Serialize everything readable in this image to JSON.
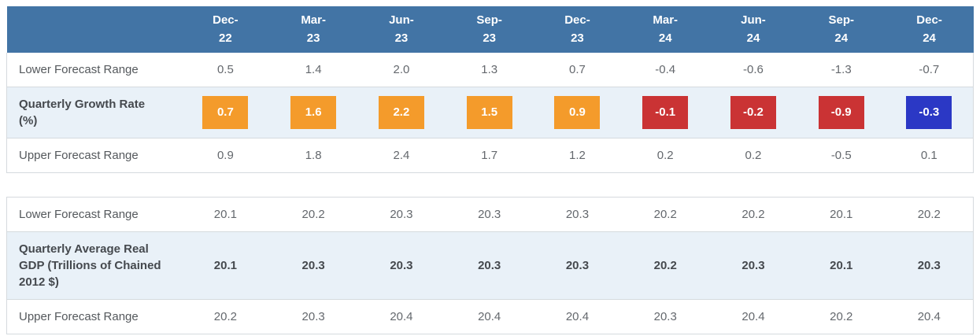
{
  "colors": {
    "header_bg": "#4274a5",
    "header_text": "#ffffff",
    "highlight_row_bg": "#e9f1f8",
    "border": "#d5dade",
    "label_text": "#54585c",
    "value_text": "#64686d",
    "bold_text": "#45494e",
    "badge_orange": "#f49b2b",
    "badge_red": "#ca3334",
    "badge_blue": "#2b38c5",
    "badge_text": "#ffffff"
  },
  "chart_data": [
    {
      "type": "table",
      "name": "quarterly-growth-rate-table",
      "categories": [
        "Dec-22",
        "Mar-23",
        "Jun-23",
        "Sep-23",
        "Dec-23",
        "Mar-24",
        "Jun-24",
        "Sep-24",
        "Dec-24"
      ],
      "rows": [
        {
          "label": "Lower Forecast Range",
          "style": "plain",
          "values": [
            "0.5",
            "1.4",
            "2.0",
            "1.3",
            "0.7",
            "-0.4",
            "-0.6",
            "-1.3",
            "-0.7"
          ]
        },
        {
          "label": "Quarterly Growth Rate (%)",
          "style": "highlight",
          "badges": true,
          "values": [
            "0.7",
            "1.6",
            "2.2",
            "1.5",
            "0.9",
            "-0.1",
            "-0.2",
            "-0.9",
            "-0.3"
          ],
          "badge_colors": [
            "badge_orange",
            "badge_orange",
            "badge_orange",
            "badge_orange",
            "badge_orange",
            "badge_red",
            "badge_red",
            "badge_red",
            "badge_blue"
          ]
        },
        {
          "label": "Upper Forecast Range",
          "style": "plain",
          "values": [
            "0.9",
            "1.8",
            "2.4",
            "1.7",
            "1.2",
            "0.2",
            "0.2",
            "-0.5",
            "0.1"
          ]
        }
      ]
    },
    {
      "type": "table",
      "name": "quarterly-average-real-gdp-table",
      "categories": [
        "Dec-22",
        "Mar-23",
        "Jun-23",
        "Sep-23",
        "Dec-23",
        "Mar-24",
        "Jun-24",
        "Sep-24",
        "Dec-24"
      ],
      "rows": [
        {
          "label": "Lower Forecast Range",
          "style": "plain",
          "values": [
            "20.1",
            "20.2",
            "20.3",
            "20.3",
            "20.3",
            "20.2",
            "20.2",
            "20.1",
            "20.2"
          ]
        },
        {
          "label": "Quarterly Average Real GDP (Trillions of Chained 2012 $)",
          "style": "highlight",
          "bold_values": true,
          "values": [
            "20.1",
            "20.3",
            "20.3",
            "20.3",
            "20.3",
            "20.2",
            "20.3",
            "20.1",
            "20.3"
          ]
        },
        {
          "label": "Upper Forecast Range",
          "style": "plain",
          "values": [
            "20.2",
            "20.3",
            "20.4",
            "20.4",
            "20.4",
            "20.3",
            "20.4",
            "20.2",
            "20.4"
          ]
        }
      ]
    }
  ]
}
